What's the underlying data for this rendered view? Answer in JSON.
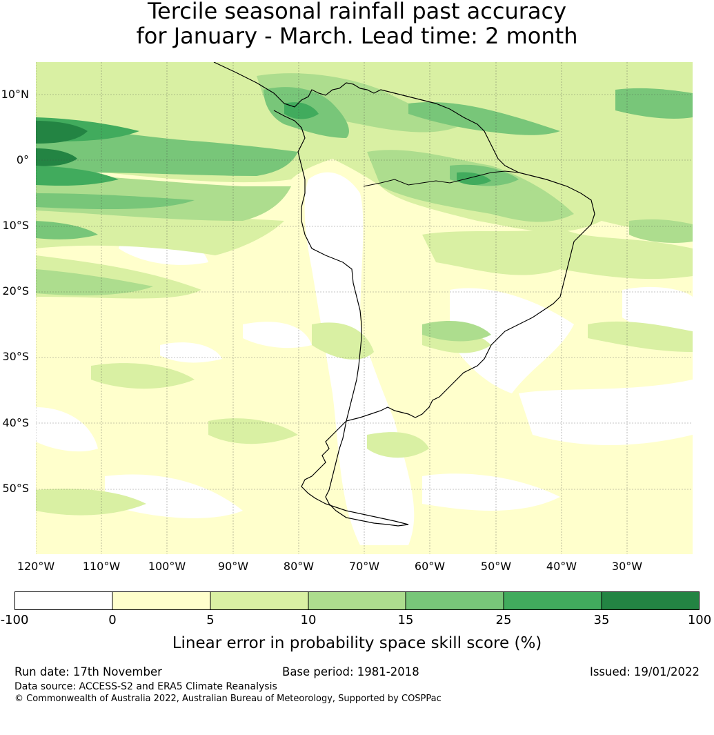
{
  "title": {
    "line1": "Tercile seasonal rainfall past accuracy",
    "line2": "for January - March. Lead time: 2 month"
  },
  "map": {
    "lat_labels": [
      "10°N",
      "0°",
      "10°S",
      "20°S",
      "30°S",
      "40°S",
      "50°S"
    ],
    "lon_labels": [
      "120°W",
      "110°W",
      "100°W",
      "90°W",
      "80°W",
      "70°W",
      "60°W",
      "50°W",
      "40°W",
      "30°W"
    ],
    "background_color": "#ffffcc"
  },
  "colorbar": {
    "ticks": [
      "-100",
      "0",
      "5",
      "10",
      "15",
      "25",
      "35",
      "100"
    ],
    "colors": [
      "#ffffff",
      "#ffffcc",
      "#d9f0a3",
      "#addd8e",
      "#78c679",
      "#41ab5d",
      "#238443"
    ],
    "label": "Linear error in probability space skill score (%)"
  },
  "footer": {
    "run_date": "Run date: 17th November",
    "base_period": "Base period: 1981-2018",
    "issued": "Issued: 19/01/2022",
    "data_source": "Data source: ACCESS-S2 and ERA5 Climate Reanalysis",
    "copyright": "© Commonwealth of Australia 2022, Australian Bureau of Meteorology, Supported by COSPPac"
  }
}
